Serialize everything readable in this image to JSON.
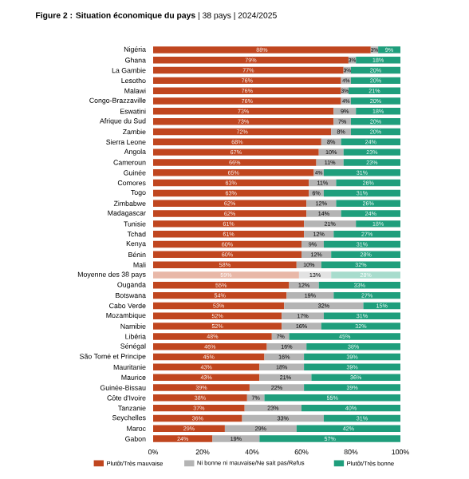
{
  "chart_data": {
    "type": "bar",
    "orientation": "horizontal",
    "stacked": true,
    "title": "**Figure 2 : Situation économique du pays** | 38 pays | 2024/2025",
    "categories": [
      "Nigéria",
      "Ghana",
      "La Gambie",
      "Lesotho",
      "Malawi",
      "Congo-Brazzaville",
      "Eswatini",
      "Afrique du Sud",
      "Zambie",
      "Sierra Leone",
      "Angola",
      "Cameroun",
      "Guinée",
      "Comores",
      "Togo",
      "Zimbabwe",
      "Madagascar",
      "Tunisie",
      "Tchad",
      "Kenya",
      "Bénin",
      "Mali",
      "Moyenne des 38 pays",
      "Ouganda",
      "Botswana",
      "Cabo Verde",
      "Mozambique",
      "Namibie",
      "Libéria",
      "Sénégal",
      "São Tomé et Principe",
      "Mauritanie",
      "Maurice",
      "Guinée-Bissau",
      "Côte d'Ivoire",
      "Tanzanie",
      "Seychelles",
      "Maroc",
      "Gabon"
    ],
    "series": [
      {
        "name": "Plutôt/Très mauvaise",
        "color": "#c0461f",
        "colors": [
          "#c0461f",
          "#c0461f",
          "#c0461f",
          "#c0461f",
          "#c0461f",
          "#c0461f",
          "#c0461f",
          "#c0461f",
          "#c0461f",
          "#c0461f",
          "#c0461f",
          "#c0461f",
          "#c0461f",
          "#c0461f",
          "#c0461f",
          "#c0461f",
          "#c0461f",
          "#c0461f",
          "#c0461f",
          "#c0461f",
          "#c0461f",
          "#c0461f",
          "#e8b8a8",
          "#c0461f",
          "#c0461f",
          "#c0461f",
          "#c0461f",
          "#c0461f",
          "#c0461f",
          "#c0461f",
          "#c0461f",
          "#c0461f",
          "#c0461f",
          "#c0461f",
          "#c0461f",
          "#c0461f",
          "#c0461f",
          "#c0461f",
          "#c0461f"
        ],
        "values": [
          88,
          79,
          77,
          76,
          76,
          76,
          73,
          73,
          72,
          68,
          67,
          66,
          65,
          63,
          63,
          62,
          62,
          61,
          61,
          60,
          60,
          58,
          59,
          55,
          54,
          53,
          52,
          52,
          48,
          46,
          45,
          43,
          43,
          39,
          38,
          37,
          36,
          29,
          24
        ],
        "value_labels": [
          "88%",
          "79%",
          "77%",
          "76%",
          "76%",
          "76%",
          "73%",
          "73%",
          "72%",
          "68%",
          "67%",
          "66%",
          "65%",
          "63%",
          "63%",
          "62%",
          "62%",
          "61%",
          "61%",
          "60%",
          "60%",
          "58%",
          "59%",
          "55%",
          "54%",
          "53%",
          "52%",
          "52%",
          "48%",
          "46%",
          "45%",
          "43%",
          "43%",
          "39%",
          "38%",
          "37%",
          "36%",
          "29%",
          "24%"
        ]
      },
      {
        "name": "Ni bonne ni mauvaise/Ne sait pas/Refus",
        "color": "#b4b4b4",
        "colors": [
          "#b4b4b4",
          "#b4b4b4",
          "#b4b4b4",
          "#b4b4b4",
          "#b4b4b4",
          "#b4b4b4",
          "#b4b4b4",
          "#b4b4b4",
          "#b4b4b4",
          "#b4b4b4",
          "#b4b4b4",
          "#b4b4b4",
          "#b4b4b4",
          "#b4b4b4",
          "#b4b4b4",
          "#b4b4b4",
          "#b4b4b4",
          "#b4b4b4",
          "#b4b4b4",
          "#b4b4b4",
          "#b4b4b4",
          "#b4b4b4",
          "#e2e2e2",
          "#b4b4b4",
          "#b4b4b4",
          "#b4b4b4",
          "#b4b4b4",
          "#b4b4b4",
          "#b4b4b4",
          "#b4b4b4",
          "#b4b4b4",
          "#b4b4b4",
          "#b4b4b4",
          "#b4b4b4",
          "#b4b4b4",
          "#b4b4b4",
          "#b4b4b4",
          "#b4b4b4",
          "#b4b4b4"
        ],
        "values": [
          3,
          3,
          3,
          4,
          3,
          4,
          9,
          7,
          8,
          8,
          10,
          11,
          4,
          11,
          6,
          12,
          14,
          21,
          12,
          9,
          12,
          10,
          13,
          12,
          19,
          32,
          17,
          16,
          7,
          16,
          16,
          18,
          21,
          22,
          7,
          23,
          33,
          29,
          19
        ],
        "value_labels": [
          "3%",
          "3%",
          "3%",
          "4%",
          "3%",
          "4%",
          "9%",
          "7%",
          "8%",
          "8%",
          "10%",
          "11%",
          "4%",
          "11%",
          "6%",
          "12%",
          "14%",
          "21%",
          "12%",
          "9%",
          "12%",
          "10%",
          "13%",
          "12%",
          "19%",
          "32%",
          "17%",
          "16%",
          "7%",
          "16%",
          "16%",
          "18%",
          "21%",
          "22%",
          "7%",
          "23%",
          "33%",
          "29%",
          "19%"
        ]
      },
      {
        "name": "Plutôt/Très bonne",
        "color": "#1f9e7c",
        "colors": [
          "#1f9e7c",
          "#1f9e7c",
          "#1f9e7c",
          "#1f9e7c",
          "#1f9e7c",
          "#1f9e7c",
          "#1f9e7c",
          "#1f9e7c",
          "#1f9e7c",
          "#1f9e7c",
          "#1f9e7c",
          "#1f9e7c",
          "#1f9e7c",
          "#1f9e7c",
          "#1f9e7c",
          "#1f9e7c",
          "#1f9e7c",
          "#1f9e7c",
          "#1f9e7c",
          "#1f9e7c",
          "#1f9e7c",
          "#1f9e7c",
          "#a8dccd",
          "#1f9e7c",
          "#1f9e7c",
          "#1f9e7c",
          "#1f9e7c",
          "#1f9e7c",
          "#1f9e7c",
          "#1f9e7c",
          "#1f9e7c",
          "#1f9e7c",
          "#1f9e7c",
          "#1f9e7c",
          "#1f9e7c",
          "#1f9e7c",
          "#1f9e7c",
          "#1f9e7c",
          "#1f9e7c"
        ],
        "values": [
          9,
          18,
          20,
          20,
          21,
          20,
          18,
          20,
          20,
          24,
          23,
          23,
          31,
          26,
          31,
          26,
          24,
          18,
          27,
          31,
          28,
          32,
          28,
          33,
          27,
          15,
          31,
          32,
          45,
          38,
          39,
          39,
          36,
          39,
          55,
          40,
          31,
          42,
          57
        ],
        "value_labels": [
          "9%",
          "18%",
          "20%",
          "20%",
          "21%",
          "20%",
          "18%",
          "20%",
          "20%",
          "24%",
          "23%",
          "23%",
          "31%",
          "26%",
          "31%",
          "26%",
          "24%",
          "18%",
          "27%",
          "31%",
          "28%",
          "32%",
          "28%",
          "33%",
          "27%",
          "15%",
          "31%",
          "32%",
          "45%",
          "38%",
          "39%",
          "39%",
          "36%",
          "39%",
          "55%",
          "40%",
          "31%",
          "42%",
          "57%"
        ]
      }
    ],
    "xlim": [
      0,
      100
    ],
    "xticks": [
      {
        "value": 0,
        "label": "0%"
      },
      {
        "value": 20,
        "label": "20%"
      },
      {
        "value": 40,
        "label": "40%"
      },
      {
        "value": 60,
        "label": "60%"
      },
      {
        "value": 80,
        "label": "80%"
      },
      {
        "value": 100,
        "label": "100%"
      }
    ],
    "legend": "bottom",
    "grid": false
  }
}
